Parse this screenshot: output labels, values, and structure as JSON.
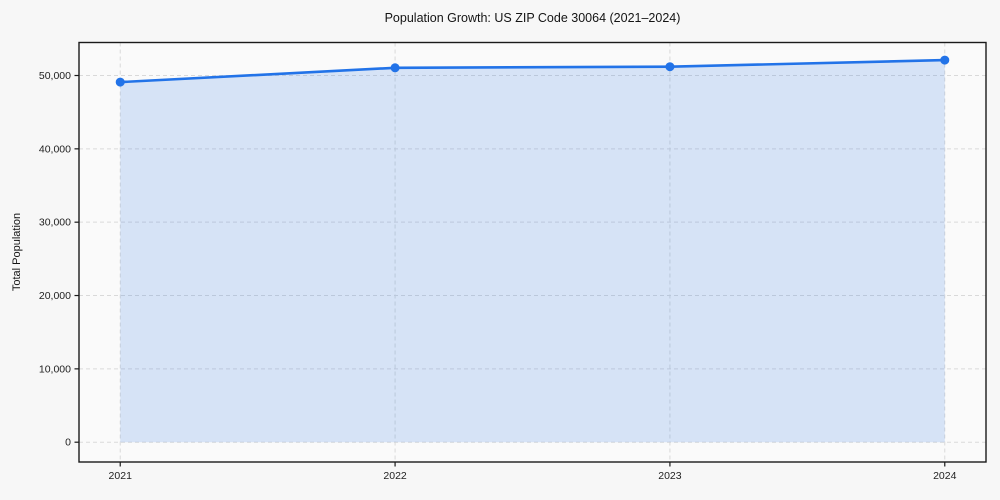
{
  "chart_data": {
    "type": "area",
    "title": "Population Growth: US ZIP Code 30064 (2021–2024)",
    "xlabel": "",
    "ylabel": "Total Population",
    "x": [
      2021,
      2022,
      2023,
      2024
    ],
    "values": [
      49100,
      51050,
      51200,
      52100
    ],
    "series_name": "Total Population",
    "xticks": [
      2021,
      2022,
      2023,
      2024
    ],
    "yticks": [
      0,
      10000,
      20000,
      30000,
      40000,
      50000
    ],
    "xlim": [
      2020.85,
      2024.15
    ],
    "ylim": [
      -2700,
      54500
    ],
    "grid": true,
    "grid_style": "dashed",
    "legend_position": "none",
    "marker": "circle",
    "colors": {
      "line": "#2273e8",
      "marker": "#2273e8",
      "fill": "rgba(34,115,232,0.16)",
      "grid": "#d9d9d9",
      "spine": "#1a1a1a",
      "tick_text": "#222222",
      "plot_bg": "#fafafa",
      "figure_bg": "#f7f7f7"
    }
  }
}
